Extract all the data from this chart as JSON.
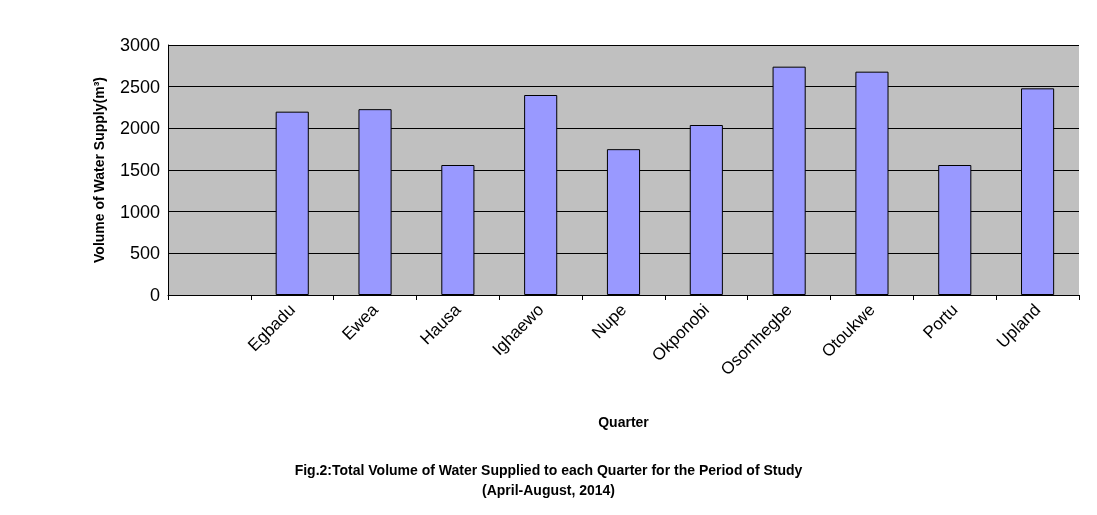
{
  "chart_data": {
    "type": "bar",
    "title": "Fig.2:Total Volume of Water Supplied to each Quarter for the Period of Study",
    "subtitle": "(April-August, 2014)",
    "xlabel": "Quarter",
    "ylabel": "Volume of Water Supply(m³)",
    "categories": [
      null,
      "Egbadu",
      "Ewea",
      "Hausa",
      "Ighaewo",
      "Nupe",
      "Okponobi",
      "Osomhegbe",
      "Otoukwe",
      "Portu",
      "Upland"
    ],
    "values": [
      null,
      2200,
      2230,
      1560,
      2400,
      1750,
      2040,
      2740,
      2680,
      1560,
      2480
    ],
    "color": "#9999ff",
    "ylim": [
      0,
      3000
    ],
    "yticks": [
      0,
      500,
      1000,
      1500,
      2000,
      2500,
      3000
    ],
    "grid": "y"
  }
}
